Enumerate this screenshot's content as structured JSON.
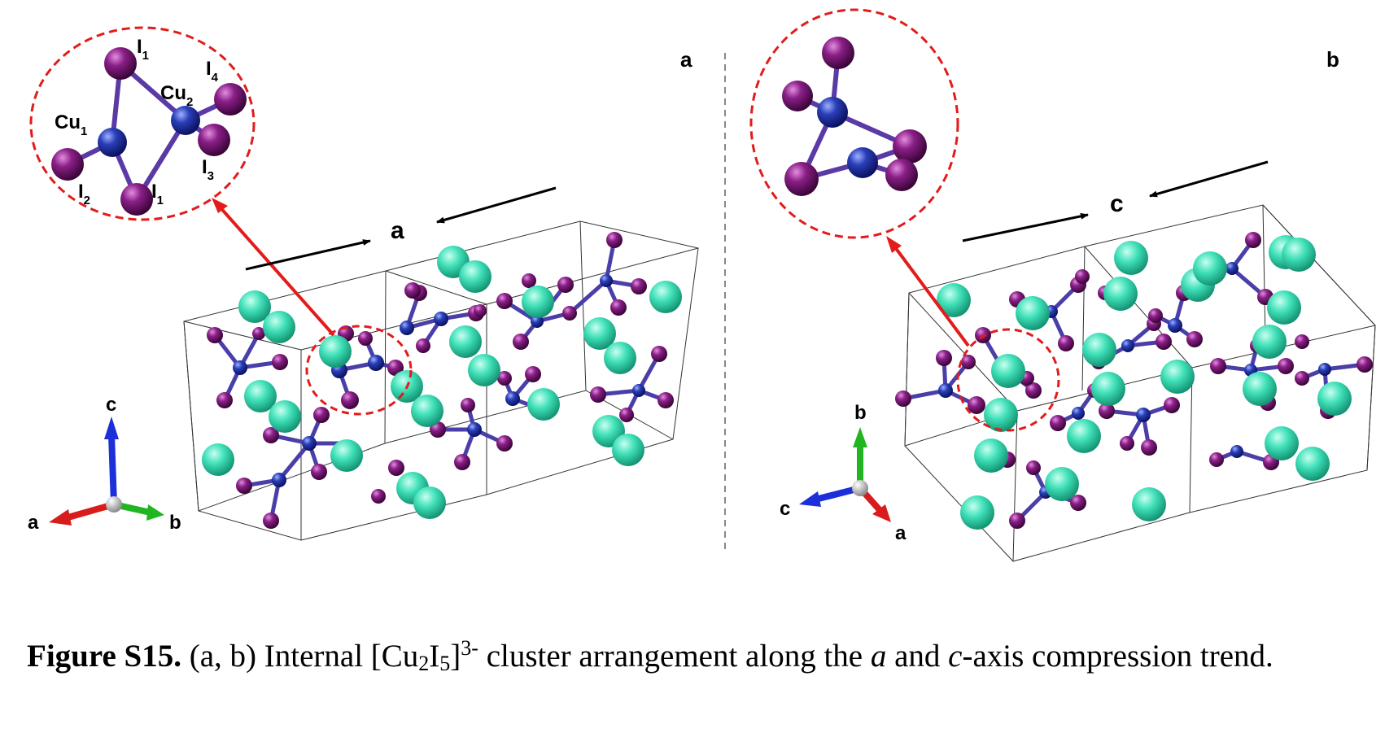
{
  "panel_a": {
    "label": "a",
    "direction_label": "a",
    "inset_labels": {
      "i1_top": "I",
      "i1_top_sub": "1",
      "i4": "I",
      "i4_sub": "4",
      "cu2": "Cu",
      "cu2_sub": "2",
      "cu1": "Cu",
      "cu1_sub": "1",
      "i3": "I",
      "i3_sub": "3",
      "i2": "I",
      "i2_sub": "2",
      "i1_bottom": "I",
      "i1_bottom_sub": "1"
    },
    "axes": {
      "vertical": "c",
      "left": "a",
      "right": "b"
    }
  },
  "panel_b": {
    "label": "b",
    "direction_label": "c",
    "axes": {
      "vertical": "b",
      "left": "c",
      "right": "a"
    }
  },
  "colors": {
    "cu": "#2a3fb8",
    "iodine": "#7d1a7a",
    "cation": "#3fe0b8",
    "highlight": "#e31b1b",
    "axis_red": "#d81c1c",
    "axis_green": "#22b522",
    "axis_blue": "#1c2fd8"
  },
  "caption": {
    "figure_label": "Figure S15.",
    "panels": "(a, b)",
    "text_1": "Internal",
    "formula_open": "[Cu",
    "formula_sub1": "2",
    "formula_mid": "I",
    "formula_sub2": "5",
    "formula_close": "]",
    "formula_charge": "3-",
    "text_2": "cluster arrangement along the",
    "axis_a": "a",
    "text_3": "and",
    "axis_c": "c",
    "text_4": "-axis compression trend."
  }
}
